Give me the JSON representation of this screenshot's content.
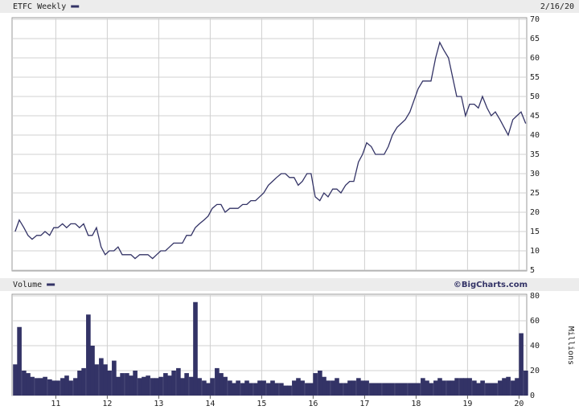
{
  "chart_data": [
    {
      "type": "line",
      "title": "ETFC Weekly",
      "date": "2/16/20",
      "color": "#333366",
      "grid": true,
      "xlim": [
        2010.15,
        2020.15
      ],
      "xticks": [
        2011,
        2012,
        2013,
        2014,
        2015,
        2016,
        2017,
        2018,
        2019,
        2020
      ],
      "ylim": [
        5,
        70
      ],
      "yticks": [
        5,
        10,
        15,
        20,
        25,
        30,
        35,
        40,
        45,
        50,
        55,
        60,
        65,
        70
      ],
      "x": [
        2010.21,
        2010.29,
        2010.38,
        2010.46,
        2010.54,
        2010.63,
        2010.71,
        2010.79,
        2010.88,
        2010.96,
        2011.04,
        2011.13,
        2011.21,
        2011.29,
        2011.38,
        2011.46,
        2011.54,
        2011.63,
        2011.71,
        2011.79,
        2011.88,
        2011.96,
        2012.04,
        2012.13,
        2012.21,
        2012.29,
        2012.38,
        2012.46,
        2012.54,
        2012.63,
        2012.71,
        2012.79,
        2012.88,
        2012.96,
        2013.04,
        2013.13,
        2013.21,
        2013.29,
        2013.38,
        2013.46,
        2013.54,
        2013.63,
        2013.71,
        2013.79,
        2013.88,
        2013.96,
        2014.04,
        2014.13,
        2014.21,
        2014.29,
        2014.38,
        2014.46,
        2014.54,
        2014.63,
        2014.71,
        2014.79,
        2014.88,
        2014.96,
        2015.04,
        2015.13,
        2015.21,
        2015.29,
        2015.38,
        2015.46,
        2015.54,
        2015.63,
        2015.71,
        2015.79,
        2015.88,
        2015.96,
        2016.04,
        2016.13,
        2016.21,
        2016.29,
        2016.38,
        2016.46,
        2016.54,
        2016.63,
        2016.71,
        2016.79,
        2016.88,
        2016.96,
        2017.04,
        2017.13,
        2017.21,
        2017.29,
        2017.38,
        2017.46,
        2017.54,
        2017.63,
        2017.71,
        2017.79,
        2017.88,
        2017.96,
        2018.04,
        2018.13,
        2018.21,
        2018.29,
        2018.38,
        2018.46,
        2018.54,
        2018.63,
        2018.71,
        2018.79,
        2018.88,
        2018.96,
        2019.04,
        2019.13,
        2019.21,
        2019.29,
        2019.38,
        2019.46,
        2019.54,
        2019.63,
        2019.71,
        2019.79,
        2019.88,
        2019.96,
        2020.04,
        2020.13
      ],
      "values": [
        15,
        18,
        16,
        14,
        13,
        14,
        14,
        15,
        14,
        16,
        16,
        17,
        16,
        17,
        17,
        16,
        17,
        14,
        14,
        16,
        11,
        9,
        10,
        10,
        11,
        9,
        9,
        9,
        8,
        9,
        9,
        9,
        8,
        9,
        10,
        10,
        11,
        12,
        12,
        12,
        14,
        14,
        16,
        17,
        18,
        19,
        21,
        22,
        22,
        20,
        21,
        21,
        21,
        22,
        22,
        23,
        23,
        24,
        25,
        27,
        28,
        29,
        30,
        30,
        29,
        29,
        27,
        28,
        30,
        30,
        24,
        23,
        25,
        24,
        26,
        26,
        25,
        27,
        28,
        28,
        33,
        35,
        38,
        37,
        35,
        35,
        35,
        37,
        40,
        42,
        43,
        44,
        46,
        49,
        52,
        54,
        54,
        54,
        60,
        64,
        62,
        60,
        55,
        50,
        50,
        45,
        48,
        48,
        47,
        50,
        47,
        45,
        46,
        44,
        42,
        40,
        44,
        45,
        46,
        43
      ]
    },
    {
      "type": "bar",
      "title": "Volume",
      "source": "©BigCharts.com",
      "y_label": "Millions",
      "color": "#333366",
      "grid": true,
      "xlim": [
        2010.15,
        2020.15
      ],
      "xticks": [
        {
          "value": 2011,
          "label": "11"
        },
        {
          "value": 2012,
          "label": "12"
        },
        {
          "value": 2013,
          "label": "13"
        },
        {
          "value": 2014,
          "label": "14"
        },
        {
          "value": 2015,
          "label": "15"
        },
        {
          "value": 2016,
          "label": "16"
        },
        {
          "value": 2017,
          "label": "17"
        },
        {
          "value": 2018,
          "label": "18"
        },
        {
          "value": 2019,
          "label": "19"
        },
        {
          "value": 2020,
          "label": "20"
        }
      ],
      "ylim": [
        0,
        80
      ],
      "yticks": [
        0,
        20,
        40,
        60,
        80
      ],
      "x": [
        2010.21,
        2010.29,
        2010.38,
        2010.46,
        2010.54,
        2010.63,
        2010.71,
        2010.79,
        2010.88,
        2010.96,
        2011.04,
        2011.13,
        2011.21,
        2011.29,
        2011.38,
        2011.46,
        2011.54,
        2011.63,
        2011.71,
        2011.79,
        2011.88,
        2011.96,
        2012.04,
        2012.13,
        2012.21,
        2012.29,
        2012.38,
        2012.46,
        2012.54,
        2012.63,
        2012.71,
        2012.79,
        2012.88,
        2012.96,
        2013.04,
        2013.13,
        2013.21,
        2013.29,
        2013.38,
        2013.46,
        2013.54,
        2013.63,
        2013.71,
        2013.79,
        2013.88,
        2013.96,
        2014.04,
        2014.13,
        2014.21,
        2014.29,
        2014.38,
        2014.46,
        2014.54,
        2014.63,
        2014.71,
        2014.79,
        2014.88,
        2014.96,
        2015.04,
        2015.13,
        2015.21,
        2015.29,
        2015.38,
        2015.46,
        2015.54,
        2015.63,
        2015.71,
        2015.79,
        2015.88,
        2015.96,
        2016.04,
        2016.13,
        2016.21,
        2016.29,
        2016.38,
        2016.46,
        2016.54,
        2016.63,
        2016.71,
        2016.79,
        2016.88,
        2016.96,
        2017.04,
        2017.13,
        2017.21,
        2017.29,
        2017.38,
        2017.46,
        2017.54,
        2017.63,
        2017.71,
        2017.79,
        2017.88,
        2017.96,
        2018.04,
        2018.13,
        2018.21,
        2018.29,
        2018.38,
        2018.46,
        2018.54,
        2018.63,
        2018.71,
        2018.79,
        2018.88,
        2018.96,
        2019.04,
        2019.13,
        2019.21,
        2019.29,
        2019.38,
        2019.46,
        2019.54,
        2019.63,
        2019.71,
        2019.79,
        2019.88,
        2019.96,
        2020.04,
        2020.13
      ],
      "values": [
        25,
        55,
        20,
        18,
        15,
        14,
        14,
        15,
        13,
        12,
        12,
        14,
        16,
        12,
        14,
        20,
        22,
        65,
        40,
        25,
        30,
        25,
        20,
        28,
        15,
        18,
        18,
        16,
        20,
        14,
        15,
        16,
        14,
        14,
        15,
        18,
        16,
        20,
        22,
        14,
        18,
        15,
        75,
        14,
        12,
        10,
        14,
        22,
        18,
        15,
        12,
        10,
        12,
        10,
        12,
        10,
        10,
        12,
        12,
        10,
        12,
        10,
        10,
        8,
        8,
        12,
        14,
        12,
        10,
        10,
        18,
        20,
        15,
        12,
        12,
        14,
        10,
        10,
        12,
        12,
        14,
        12,
        12,
        10,
        10,
        10,
        10,
        10,
        10,
        10,
        10,
        10,
        10,
        10,
        10,
        14,
        12,
        10,
        12,
        14,
        12,
        12,
        12,
        14,
        14,
        14,
        14,
        12,
        10,
        12,
        10,
        10,
        10,
        12,
        14,
        15,
        12,
        14,
        50,
        20
      ]
    }
  ]
}
